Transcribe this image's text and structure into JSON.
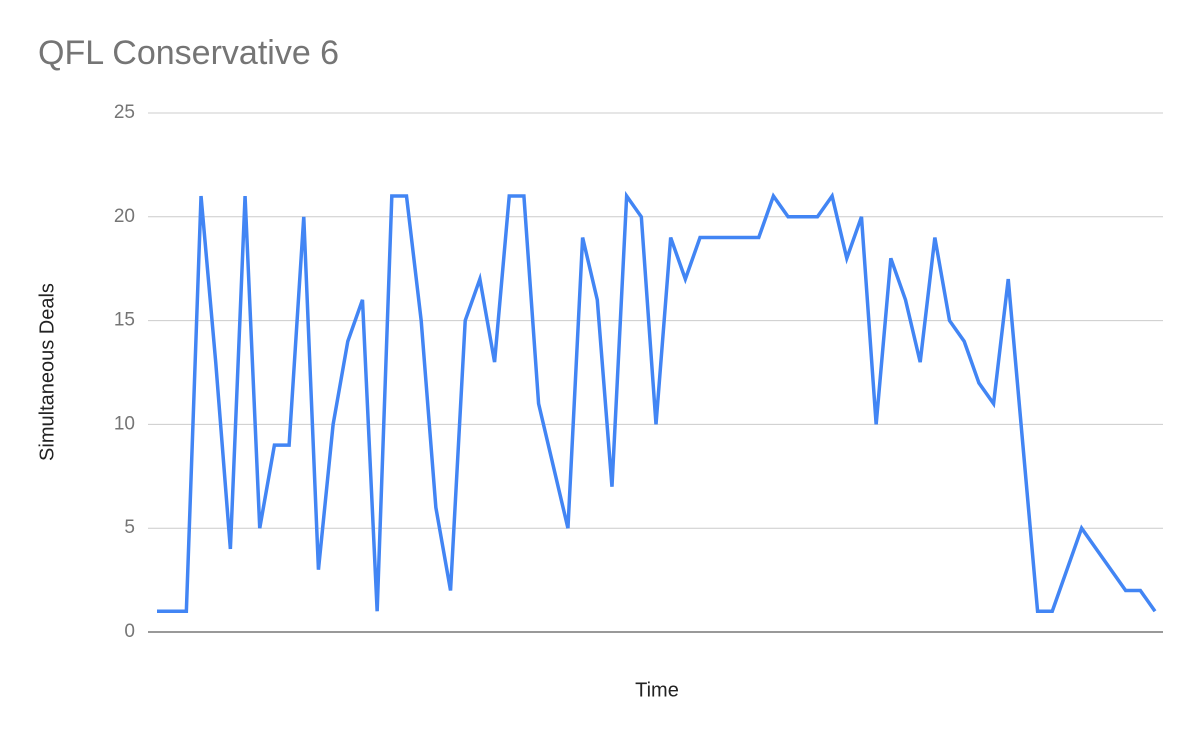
{
  "chart_data": {
    "type": "line",
    "title": "QFL Conservative 6",
    "xlabel": "Time",
    "ylabel": "Simultaneous Deals",
    "categories": [
      null,
      null,
      null,
      null,
      null,
      null,
      null,
      null,
      null,
      null,
      null,
      null,
      null,
      null,
      null,
      null,
      null,
      null,
      null,
      null,
      null,
      null,
      null,
      null,
      null,
      null,
      null,
      null,
      null,
      null,
      null,
      null,
      null,
      null,
      null,
      null,
      null,
      null,
      null,
      null,
      null,
      null,
      null,
      null,
      null,
      null,
      null,
      null,
      null,
      null,
      null,
      null,
      null,
      null,
      null,
      null,
      null,
      null,
      null,
      null,
      null,
      null,
      null,
      null,
      null,
      null,
      null,
      null,
      null
    ],
    "values": [
      1,
      1,
      1,
      21,
      13,
      4,
      21,
      5,
      9,
      9,
      20,
      3,
      10,
      14,
      16,
      1,
      21,
      21,
      15,
      6,
      2,
      15,
      17,
      13,
      21,
      21,
      11,
      8,
      5,
      19,
      16,
      7,
      21,
      20,
      10,
      19,
      17,
      19,
      19,
      19,
      19,
      19,
      21,
      20,
      20,
      20,
      21,
      18,
      20,
      10,
      18,
      16,
      13,
      19,
      15,
      14,
      12,
      11,
      17,
      9,
      1,
      1,
      3,
      5,
      4,
      3,
      2,
      2,
      1
    ],
    "color": "#4285f4",
    "ylim": [
      0,
      25
    ],
    "yticks": [
      0,
      5,
      10,
      15,
      20,
      25
    ],
    "grid": true
  }
}
